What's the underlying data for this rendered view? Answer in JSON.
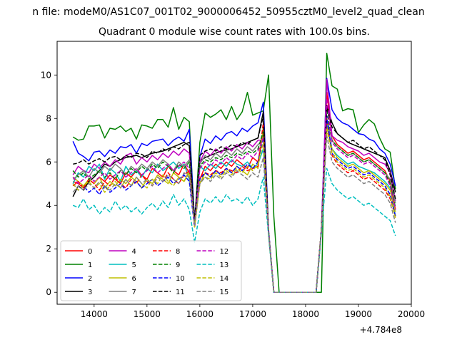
{
  "figure": {
    "suptitle": "n file: modeM0/AS1C07_001T02_9000006452_50955cztM0_level2_quad_clean"
  },
  "chart_data": {
    "type": "line",
    "title": "Quadrant 0 module wise count rates with 100.0s bins.",
    "xlabel": "",
    "ylabel": "",
    "x_offset_label": "+4.784e8",
    "xlim": [
      13300,
      20000
    ],
    "ylim": [
      -0.55,
      11.55
    ],
    "xticks": [
      14000,
      15000,
      16000,
      17000,
      18000,
      19000,
      20000
    ],
    "xtick_labels": [
      "14000",
      "15000",
      "16000",
      "17000",
      "18000",
      "19000",
      "20000"
    ],
    "yticks": [
      0,
      2,
      4,
      6,
      8,
      10
    ],
    "ytick_labels": [
      "0",
      "2",
      "4",
      "6",
      "8",
      "10"
    ],
    "legend": {
      "position": "lower-left",
      "columns": 4
    },
    "grid": false,
    "x": [
      13600,
      13700,
      13800,
      13900,
      14000,
      14100,
      14200,
      14300,
      14400,
      14500,
      14600,
      14700,
      14800,
      14900,
      15000,
      15100,
      15200,
      15300,
      15400,
      15500,
      15600,
      15700,
      15800,
      15900,
      16000,
      16100,
      16200,
      16300,
      16400,
      16500,
      16600,
      16700,
      16800,
      16900,
      17000,
      17100,
      17200,
      17300,
      17400,
      17500,
      17600,
      17700,
      17800,
      17900,
      18000,
      18100,
      18200,
      18300,
      18400,
      18500,
      18600,
      18700,
      18800,
      18900,
      19000,
      19100,
      19200,
      19300,
      19400,
      19500,
      19600,
      19700
    ],
    "series": [
      {
        "name": "0",
        "color": "#ff0000",
        "dash": "solid",
        "values": [
          5.1,
          5.0,
          4.8,
          5.2,
          5.0,
          5.3,
          5.1,
          5.4,
          5.2,
          5.0,
          5.5,
          5.3,
          5.6,
          5.4,
          5.2,
          5.7,
          5.5,
          5.3,
          5.8,
          5.6,
          5.4,
          5.9,
          5.5,
          3.1,
          5.2,
          5.8,
          5.6,
          5.9,
          5.7,
          6.0,
          5.8,
          6.1,
          5.9,
          5.7,
          6.2,
          6.0,
          7.4,
          2.8,
          0,
          0,
          0,
          0,
          0,
          0,
          0,
          0,
          0,
          2.9,
          9.2,
          7.2,
          6.8,
          6.6,
          6.4,
          6.5,
          6.3,
          6.1,
          6.2,
          6.0,
          5.8,
          5.6,
          5.1,
          3.8
        ]
      },
      {
        "name": "1",
        "color": "#008000",
        "dash": "solid",
        "values": [
          7.15,
          7.0,
          7.05,
          7.65,
          7.65,
          7.7,
          7.1,
          7.55,
          7.5,
          7.65,
          7.4,
          7.55,
          7.05,
          7.7,
          7.65,
          7.55,
          7.95,
          7.95,
          7.6,
          8.5,
          7.5,
          8.05,
          7.85,
          3.2,
          6.9,
          8.25,
          8.05,
          8.2,
          8.4,
          7.95,
          8.55,
          7.95,
          8.3,
          9.2,
          8.15,
          8.25,
          8.35,
          10.0,
          3.5,
          0,
          0,
          0,
          0,
          0,
          0,
          0,
          0,
          0,
          11.0,
          9.5,
          9.35,
          8.35,
          8.45,
          8.4,
          7.35,
          7.7,
          7.95,
          7.75,
          7.1,
          6.6,
          6.45,
          4.75
        ]
      },
      {
        "name": "2",
        "color": "#0000ff",
        "dash": "solid",
        "values": [
          6.95,
          6.4,
          6.25,
          6.05,
          6.45,
          6.5,
          6.25,
          6.55,
          6.4,
          6.7,
          6.65,
          6.8,
          6.4,
          6.85,
          6.75,
          6.95,
          7.0,
          7.05,
          6.75,
          7.0,
          7.15,
          6.95,
          7.5,
          3.3,
          6.25,
          7.05,
          6.85,
          7.2,
          7.0,
          7.3,
          7.4,
          7.2,
          7.55,
          7.4,
          7.65,
          7.8,
          8.75,
          2.9,
          0,
          0,
          0,
          0,
          0,
          0,
          0,
          0,
          0,
          2.9,
          9.85,
          8.4,
          8.0,
          7.8,
          7.7,
          7.5,
          7.3,
          7.25,
          7.05,
          6.95,
          6.6,
          6.4,
          5.9,
          4.9
        ]
      },
      {
        "name": "3",
        "color": "#000000",
        "dash": "solid",
        "values": [
          4.4,
          4.9,
          4.7,
          5.1,
          5.3,
          5.6,
          5.9,
          5.8,
          6.0,
          6.1,
          6.2,
          6.25,
          6.3,
          6.2,
          6.3,
          6.4,
          6.45,
          6.5,
          6.6,
          6.7,
          6.8,
          6.9,
          6.75,
          3.3,
          6.05,
          6.2,
          6.3,
          6.4,
          6.5,
          6.55,
          6.6,
          6.7,
          6.8,
          6.9,
          7.0,
          7.1,
          8.3,
          2.7,
          0,
          0,
          0,
          0,
          0,
          0,
          0,
          0,
          0,
          2.8,
          8.6,
          7.8,
          7.3,
          7.1,
          6.9,
          6.8,
          6.7,
          6.6,
          6.5,
          6.4,
          6.3,
          6.2,
          5.6,
          4.6
        ]
      },
      {
        "name": "4",
        "color": "#bf00bf",
        "dash": "solid",
        "values": [
          5.4,
          5.8,
          5.6,
          5.5,
          5.9,
          5.7,
          6.0,
          5.8,
          6.1,
          5.9,
          6.3,
          6.4,
          5.9,
          6.2,
          6.0,
          6.3,
          6.1,
          6.4,
          6.2,
          6.5,
          6.3,
          6.6,
          6.4,
          3.0,
          6.0,
          6.5,
          6.3,
          6.6,
          6.4,
          6.7,
          6.5,
          6.8,
          6.6,
          6.9,
          6.7,
          7.0,
          7.0,
          2.8,
          0,
          0,
          0,
          0,
          0,
          0,
          0,
          0,
          0,
          2.8,
          9.8,
          7.2,
          7.0,
          6.9,
          6.7,
          6.6,
          6.5,
          6.3,
          6.4,
          6.2,
          6.0,
          5.9,
          5.5,
          4.2
        ]
      },
      {
        "name": "5",
        "color": "#00bfbf",
        "dash": "solid",
        "values": [
          5.0,
          5.5,
          5.3,
          5.8,
          5.6,
          5.9,
          5.2,
          5.7,
          5.5,
          5.1,
          5.8,
          5.4,
          5.6,
          5.3,
          5.7,
          5.5,
          5.9,
          5.6,
          5.8,
          6.0,
          5.7,
          5.9,
          5.2,
          3.3,
          5.8,
          5.6,
          5.9,
          5.7,
          6.0,
          5.8,
          6.1,
          5.9,
          5.8,
          6.0,
          5.7,
          5.9,
          6.6,
          2.8,
          0,
          0,
          0,
          0,
          0,
          0,
          0,
          0,
          0,
          2.9,
          7.8,
          6.6,
          6.3,
          6.1,
          5.9,
          6.0,
          5.8,
          5.7,
          5.6,
          5.5,
          5.3,
          5.1,
          4.8,
          3.5
        ]
      },
      {
        "name": "6",
        "color": "#bfbf00",
        "dash": "solid",
        "values": [
          5.3,
          5.1,
          4.9,
          5.2,
          5.0,
          5.3,
          4.8,
          5.1,
          4.9,
          5.2,
          5.0,
          5.3,
          5.1,
          4.8,
          5.2,
          5.0,
          5.4,
          5.2,
          5.0,
          5.5,
          5.3,
          5.1,
          5.6,
          3.0,
          5.0,
          5.5,
          5.3,
          5.6,
          5.4,
          5.7,
          5.5,
          5.8,
          5.6,
          5.4,
          5.9,
          5.7,
          7.6,
          2.8,
          0,
          0,
          0,
          0,
          0,
          0,
          0,
          0,
          0,
          2.9,
          7.6,
          6.6,
          6.2,
          6.0,
          5.8,
          5.9,
          5.7,
          5.5,
          5.6,
          5.4,
          5.2,
          5.0,
          4.7,
          3.7
        ]
      },
      {
        "name": "7",
        "color": "#808080",
        "dash": "solid",
        "values": [
          5.2,
          5.4,
          5.6,
          5.3,
          5.7,
          5.5,
          5.8,
          5.6,
          5.9,
          5.7,
          5.4,
          5.8,
          5.6,
          5.9,
          5.7,
          6.0,
          5.8,
          6.1,
          5.9,
          5.6,
          6.0,
          5.8,
          6.1,
          3.3,
          5.9,
          6.3,
          6.1,
          6.4,
          6.2,
          6.5,
          6.3,
          6.6,
          6.4,
          6.7,
          6.5,
          6.8,
          7.0,
          2.8,
          0,
          0,
          0,
          0,
          0,
          0,
          0,
          0,
          0,
          2.9,
          8.0,
          7.0,
          6.7,
          6.5,
          6.3,
          6.4,
          6.2,
          6.0,
          6.1,
          5.9,
          5.7,
          5.5,
          5.2,
          4.1
        ]
      },
      {
        "name": "8",
        "color": "#ff0000",
        "dash": "dashed",
        "values": [
          4.9,
          5.1,
          4.8,
          5.2,
          5.0,
          4.7,
          5.1,
          4.9,
          5.3,
          5.0,
          4.8,
          5.2,
          5.0,
          5.4,
          5.1,
          4.9,
          5.3,
          5.1,
          5.5,
          5.2,
          5.0,
          5.4,
          5.6,
          3.0,
          5.3,
          5.5,
          5.4,
          5.6,
          5.5,
          5.7,
          5.6,
          5.5,
          5.8,
          5.6,
          5.7,
          5.8,
          7.8,
          2.8,
          0,
          0,
          0,
          0,
          0,
          0,
          0,
          0,
          0,
          2.9,
          8.0,
          6.3,
          5.9,
          5.7,
          5.5,
          5.6,
          5.4,
          5.2,
          5.3,
          5.1,
          4.9,
          4.7,
          4.3,
          3.5
        ]
      },
      {
        "name": "9",
        "color": "#008000",
        "dash": "dashed",
        "values": [
          5.6,
          5.3,
          5.5,
          5.2,
          5.4,
          5.6,
          5.3,
          5.5,
          5.2,
          5.6,
          5.4,
          5.7,
          5.5,
          5.8,
          5.6,
          5.9,
          5.7,
          6.0,
          5.8,
          5.5,
          5.9,
          5.7,
          6.0,
          3.2,
          5.8,
          6.1,
          6.0,
          6.2,
          6.1,
          6.3,
          6.2,
          6.4,
          6.3,
          6.5,
          6.4,
          6.6,
          7.4,
          2.8,
          0,
          0,
          0,
          0,
          0,
          0,
          0,
          0,
          0,
          2.9,
          8.4,
          7.0,
          6.7,
          6.5,
          6.3,
          6.4,
          6.2,
          6.0,
          6.1,
          5.9,
          5.7,
          5.5,
          5.0,
          3.9
        ]
      },
      {
        "name": "10",
        "color": "#0000ff",
        "dash": "dashed",
        "values": [
          5.0,
          4.7,
          4.9,
          4.6,
          4.8,
          4.5,
          4.9,
          4.6,
          4.8,
          5.0,
          4.7,
          4.9,
          5.1,
          4.8,
          5.0,
          5.2,
          4.9,
          5.1,
          5.3,
          5.0,
          5.2,
          5.4,
          5.1,
          3.0,
          5.2,
          5.5,
          5.3,
          5.6,
          5.4,
          5.7,
          5.5,
          5.8,
          5.6,
          5.9,
          5.7,
          6.0,
          7.0,
          2.8,
          0,
          0,
          0,
          0,
          0,
          0,
          0,
          0,
          0,
          2.9,
          8.1,
          6.4,
          6.1,
          5.9,
          5.7,
          5.8,
          5.6,
          5.4,
          5.5,
          5.3,
          5.1,
          4.9,
          4.5,
          3.5
        ]
      },
      {
        "name": "11",
        "color": "#000000",
        "dash": "dashed",
        "values": [
          5.9,
          5.95,
          6.1,
          5.9,
          6.05,
          6.15,
          6.0,
          6.2,
          6.25,
          6.1,
          6.3,
          6.2,
          6.4,
          6.35,
          6.2,
          6.5,
          6.4,
          6.6,
          6.5,
          6.7,
          6.6,
          6.8,
          6.9,
          3.3,
          6.3,
          6.5,
          6.6,
          6.5,
          6.7,
          6.6,
          6.8,
          6.7,
          6.9,
          6.8,
          7.0,
          7.1,
          8.1,
          2.8,
          0,
          0,
          0,
          0,
          0,
          0,
          0,
          0,
          0,
          2.9,
          8.5,
          7.6,
          7.3,
          7.1,
          6.9,
          7.0,
          6.8,
          6.6,
          6.7,
          6.5,
          6.3,
          6.1,
          5.4,
          4.3
        ]
      },
      {
        "name": "12",
        "color": "#bf00bf",
        "dash": "dashed",
        "values": [
          5.3,
          5.0,
          5.2,
          5.4,
          5.1,
          5.3,
          5.5,
          5.2,
          5.4,
          5.6,
          5.3,
          5.5,
          5.7,
          5.4,
          5.6,
          5.8,
          5.5,
          5.7,
          5.9,
          5.6,
          5.8,
          6.0,
          5.7,
          3.1,
          5.7,
          6.0,
          5.8,
          6.1,
          5.9,
          6.2,
          6.0,
          6.3,
          6.1,
          6.4,
          6.2,
          6.5,
          7.1,
          2.8,
          0,
          0,
          0,
          0,
          0,
          0,
          0,
          0,
          0,
          2.9,
          8.9,
          6.9,
          6.6,
          6.4,
          6.2,
          6.3,
          6.1,
          5.9,
          6.0,
          5.8,
          5.6,
          5.4,
          4.9,
          3.8
        ]
      },
      {
        "name": "13",
        "color": "#00bfbf",
        "dash": "dashed",
        "values": [
          4.0,
          3.9,
          4.3,
          3.8,
          4.0,
          3.6,
          3.9,
          3.7,
          4.2,
          3.8,
          4.0,
          3.7,
          3.9,
          3.6,
          3.9,
          4.1,
          3.8,
          4.2,
          3.9,
          4.5,
          4.0,
          4.3,
          3.8,
          2.3,
          3.7,
          4.3,
          4.1,
          4.4,
          4.1,
          4.5,
          4.2,
          4.3,
          4.1,
          4.4,
          4.0,
          4.3,
          5.3,
          2.6,
          0,
          0,
          0,
          0,
          0,
          0,
          0,
          0,
          0,
          2.7,
          5.7,
          5.0,
          4.7,
          4.5,
          4.3,
          4.4,
          4.2,
          4.0,
          4.1,
          3.9,
          3.7,
          3.5,
          3.3,
          2.6
        ]
      },
      {
        "name": "14",
        "color": "#bfbf00",
        "dash": "dashed",
        "values": [
          5.0,
          4.7,
          4.9,
          5.1,
          4.8,
          5.0,
          4.6,
          4.9,
          5.1,
          4.8,
          5.2,
          4.9,
          5.3,
          5.0,
          4.8,
          5.2,
          5.0,
          5.4,
          5.1,
          4.9,
          5.3,
          5.1,
          5.5,
          3.0,
          5.1,
          5.3,
          5.2,
          5.5,
          5.3,
          5.6,
          5.4,
          5.7,
          5.5,
          5.8,
          5.6,
          5.9,
          6.9,
          2.8,
          0,
          0,
          0,
          0,
          0,
          0,
          0,
          0,
          0,
          2.9,
          7.5,
          6.4,
          6.0,
          5.8,
          5.6,
          5.7,
          5.5,
          5.3,
          5.4,
          5.2,
          5.0,
          4.8,
          4.4,
          3.4
        ]
      },
      {
        "name": "15",
        "color": "#808080",
        "dash": "dashed",
        "values": [
          4.6,
          4.9,
          4.7,
          5.0,
          4.8,
          5.1,
          4.9,
          4.7,
          5.0,
          4.8,
          5.2,
          4.9,
          5.3,
          5.0,
          5.2,
          4.9,
          5.3,
          5.1,
          5.4,
          5.2,
          5.0,
          5.5,
          5.3,
          3.1,
          5.0,
          5.3,
          5.1,
          5.4,
          5.2,
          5.5,
          5.3,
          5.6,
          5.4,
          5.2,
          5.5,
          5.3,
          6.2,
          2.8,
          0,
          0,
          0,
          0,
          0,
          0,
          0,
          0,
          0,
          2.9,
          7.2,
          6.0,
          5.7,
          5.5,
          5.3,
          5.4,
          5.2,
          5.0,
          5.1,
          4.9,
          4.7,
          4.5,
          4.1,
          3.2
        ]
      }
    ]
  }
}
